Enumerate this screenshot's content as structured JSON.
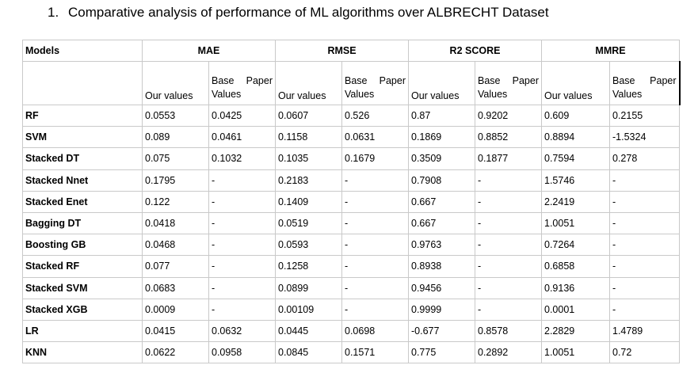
{
  "heading": {
    "number": "1.",
    "title": "Comparative analysis of performance of ML algorithms over ALBRECHT Dataset"
  },
  "table": {
    "models_header": "Models",
    "metrics": [
      "MAE",
      "RMSE",
      "R2 SCORE",
      "MMRE"
    ],
    "our_values_label": "Our values",
    "base_label_word1": "Base",
    "base_label_word2": "Paper",
    "base_label_word3": "Values",
    "rows": [
      {
        "model": "RF",
        "vals": [
          "0.0553",
          "0.0425",
          "0.0607",
          "0.526",
          "0.87",
          "0.9202",
          "0.609",
          "0.2155"
        ]
      },
      {
        "model": "SVM",
        "vals": [
          "0.089",
          "0.0461",
          "0.1158",
          "0.0631",
          "0.1869",
          "0.8852",
          "0.8894",
          "-1.5324"
        ]
      },
      {
        "model": "Stacked DT",
        "vals": [
          "0.075",
          "0.1032",
          "0.1035",
          "0.1679",
          "0.3509",
          "0.1877",
          "0.7594",
          "0.278"
        ]
      },
      {
        "model": "Stacked Nnet",
        "vals": [
          "0.1795",
          "-",
          "0.2183",
          "-",
          "0.7908",
          "-",
          "1.5746",
          "-"
        ]
      },
      {
        "model": "Stacked Enet",
        "vals": [
          "0.122",
          "-",
          "0.1409",
          "-",
          "0.667",
          "-",
          "2.2419",
          "-"
        ]
      },
      {
        "model": "Bagging DT",
        "vals": [
          "0.0418",
          "-",
          "0.0519",
          "-",
          "0.667",
          "-",
          "1.0051",
          "-"
        ]
      },
      {
        "model": "Boosting GB",
        "vals": [
          "0.0468",
          "-",
          "0.0593",
          "-",
          "0.9763",
          "-",
          "0.7264",
          "-"
        ]
      },
      {
        "model": "Stacked RF",
        "vals": [
          "0.077",
          "-",
          "0.1258",
          "-",
          "0.8938",
          "-",
          "0.6858",
          "-"
        ]
      },
      {
        "model": "Stacked SVM",
        "vals": [
          "0.0683",
          "-",
          "0.0899",
          "-",
          "0.9456",
          "-",
          "0.9136",
          "-"
        ]
      },
      {
        "model": "Stacked XGB",
        "vals": [
          "0.0009",
          "-",
          "0.00109",
          "-",
          "0.9999",
          "-",
          "0.0001",
          "-"
        ]
      },
      {
        "model": "LR",
        "vals": [
          "0.0415",
          "0.0632",
          "0.0445",
          "0.0698",
          "-0.677",
          "0.8578",
          "2.2829",
          "1.4789"
        ]
      },
      {
        "model": "KNN",
        "vals": [
          "0.0622",
          "0.0958",
          "0.0845",
          "0.1571",
          "0.775",
          "0.2892",
          "1.0051",
          "0.72"
        ]
      }
    ]
  }
}
